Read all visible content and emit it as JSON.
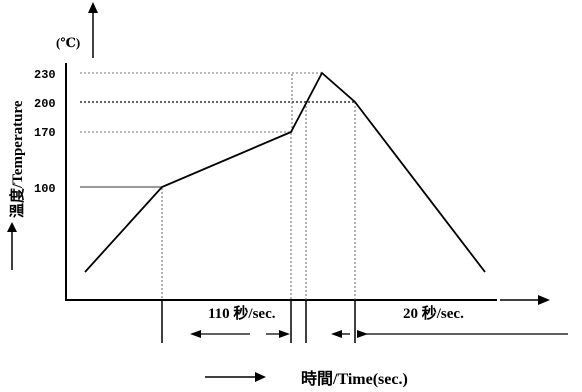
{
  "unit_label": "(℃)",
  "y_axis_label": "溫度/Temperature",
  "x_axis_label": "時間/Time(sec.)",
  "temp_ticks": [
    "100",
    "170",
    "200",
    "230"
  ],
  "duration_labels": {
    "preheat": "110 秒/sec.",
    "reflow": "20 秒/sec."
  },
  "chart_data": {
    "type": "line",
    "title": "",
    "xlabel": "時間/Time(sec.)",
    "ylabel": "溫度/Temperature",
    "unit": "℃",
    "y_ticks": [
      100,
      170,
      200,
      230
    ],
    "annotations": [
      {
        "label": "110 秒/sec.",
        "from_temp": 100,
        "to_temp": 170
      },
      {
        "label": "20 秒/sec.",
        "above_temp": 200
      }
    ],
    "profile_temps": [
      20,
      100,
      170,
      230,
      200,
      20
    ]
  }
}
